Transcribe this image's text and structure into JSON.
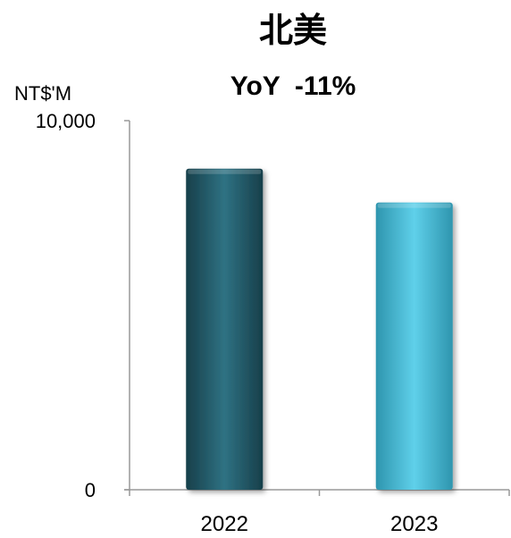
{
  "chart_data": {
    "type": "bar",
    "title": "北美",
    "subtitle": "YoY  -11%",
    "ylabel": "NT$'M",
    "categories": [
      "2022",
      "2023"
    ],
    "values": [
      8700,
      7780
    ],
    "ylim": [
      0,
      10000
    ],
    "yticks": [
      {
        "value": 0,
        "label": "0"
      },
      {
        "value": 10000,
        "label": "10,000"
      }
    ],
    "colors": {
      "bar_2022": "#2a6473",
      "bar_2023": "#4fc3de",
      "axis": "#999999"
    },
    "grid": false,
    "legend": "none"
  }
}
